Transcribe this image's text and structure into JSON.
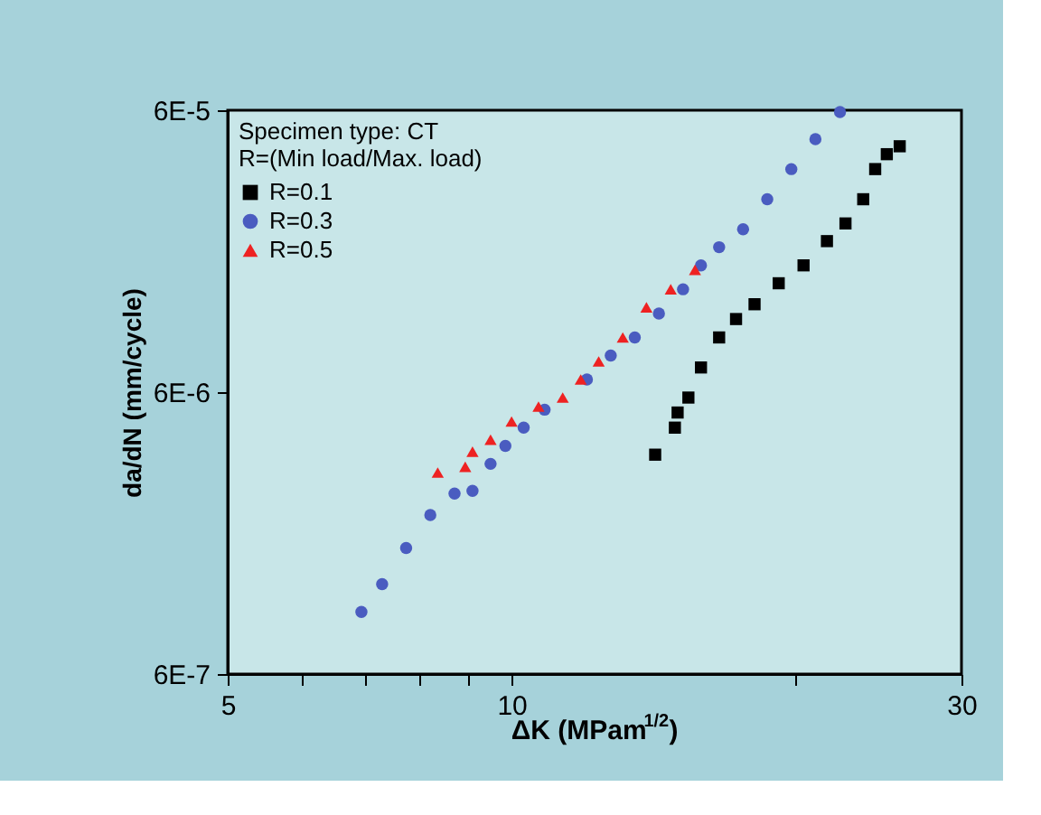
{
  "chart_data": {
    "type": "scatter",
    "xlabel": "ΔK (MPam$^{1/2}$)",
    "ylabel": "da/dN (mm/cycle)",
    "legend_title": "Specimen type: CT\nR=(Min load/Max. load)",
    "legend": "top left",
    "log": "xy",
    "grid": false,
    "xlim": [
      5,
      30
    ],
    "ylim": [
      6e-07,
      6e-05
    ],
    "xticks": [
      5,
      {
        "value": 6,
        "label": null
      },
      {
        "value": 7,
        "label": null
      },
      {
        "value": 8,
        "label": null
      },
      {
        "value": 9,
        "label": null
      },
      10,
      {
        "value": 20,
        "label": null
      },
      30
    ],
    "yticks": [
      {
        "value": 6e-07,
        "label": "6E-7"
      },
      {
        "value": 6e-06,
        "label": "6E-6"
      },
      {
        "value": 6e-05,
        "label": "6E-5"
      }
    ],
    "series": [
      {
        "name": "R=0.1",
        "color": "#000000",
        "marker": "square",
        "x": [
          14.2,
          14.9,
          15.0,
          15.4,
          15.88,
          16.6,
          17.3,
          18.1,
          19.2,
          20.4,
          21.6,
          22.6,
          23.6,
          24.3,
          25.0,
          25.8
        ],
        "values": [
          3.6e-06,
          4.49e-06,
          5.08e-06,
          5.74e-06,
          7.34e-06,
          9.38e-06,
          1.09e-05,
          1.23e-05,
          1.46e-05,
          1.69e-05,
          2.06e-05,
          2.38e-05,
          2.9e-05,
          3.71e-05,
          4.19e-05,
          4.47e-05
        ]
      },
      {
        "name": "R=0.3",
        "color": "#4a5cc0",
        "marker": "circle",
        "x": [
          6.93,
          7.29,
          7.73,
          8.2,
          8.7,
          9.09,
          9.5,
          9.85,
          10.3,
          10.84,
          11.33,
          12.02,
          12.74,
          13.51,
          14.33,
          15.2,
          15.88,
          16.6,
          17.6,
          18.67,
          19.8,
          21.0,
          22.3
        ],
        "values": [
          9.96e-07,
          1.25e-06,
          1.68e-06,
          2.2e-06,
          2.62e-06,
          2.68e-06,
          3.34e-06,
          3.87e-06,
          4.49e-06,
          5.2e-06,
          null,
          6.65e-06,
          8.09e-06,
          9.38e-06,
          1.14e-05,
          1.39e-05,
          1.69e-05,
          1.96e-05,
          2.27e-05,
          2.9e-05,
          3.71e-05,
          4.74e-05,
          5.91e-05
        ]
      },
      {
        "name": "R=0.5",
        "color": "#ee2222",
        "marker": "triangle",
        "x": [
          8.35,
          8.93,
          9.09,
          9.5,
          10.0,
          10.68,
          11.33,
          11.84,
          12.37,
          13.12,
          13.9,
          14.75,
          15.65
        ],
        "values": [
          3.11e-06,
          3.26e-06,
          3.69e-06,
          4.07e-06,
          4.72e-06,
          5.33e-06,
          5.74e-06,
          6.65e-06,
          7.71e-06,
          9.38e-06,
          1.2e-05,
          1.39e-05,
          1.63e-05
        ]
      }
    ]
  }
}
